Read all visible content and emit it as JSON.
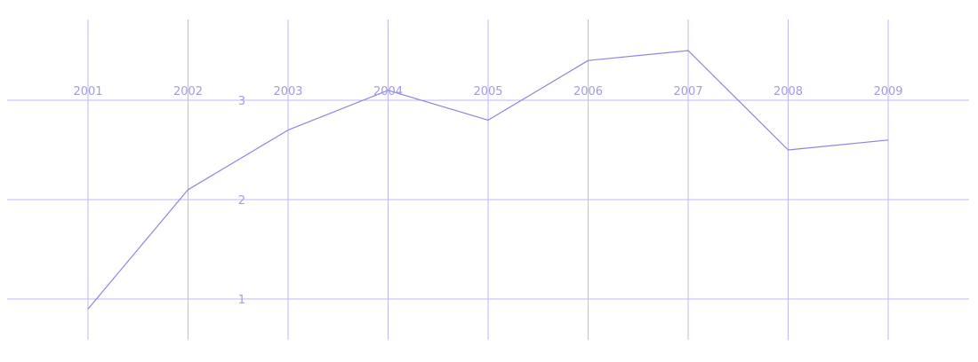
{
  "chart_data": {
    "type": "line",
    "x": [
      "2001",
      "2002",
      "2003",
      "2004",
      "2005",
      "2006",
      "2007",
      "2008",
      "2009"
    ],
    "series": [
      {
        "values": [
          0.9,
          2.1,
          2.7,
          3.1,
          2.8,
          3.4,
          3.5,
          2.5,
          2.6
        ]
      }
    ],
    "yticks": [
      "1",
      "2",
      "3"
    ],
    "ylim": [
      0.6,
      3.8
    ],
    "grid": true,
    "legend": "none"
  },
  "colors": {
    "line": "#8a86e0",
    "grid": "#bdbaf0",
    "tick_text": "#9f9ce6"
  }
}
